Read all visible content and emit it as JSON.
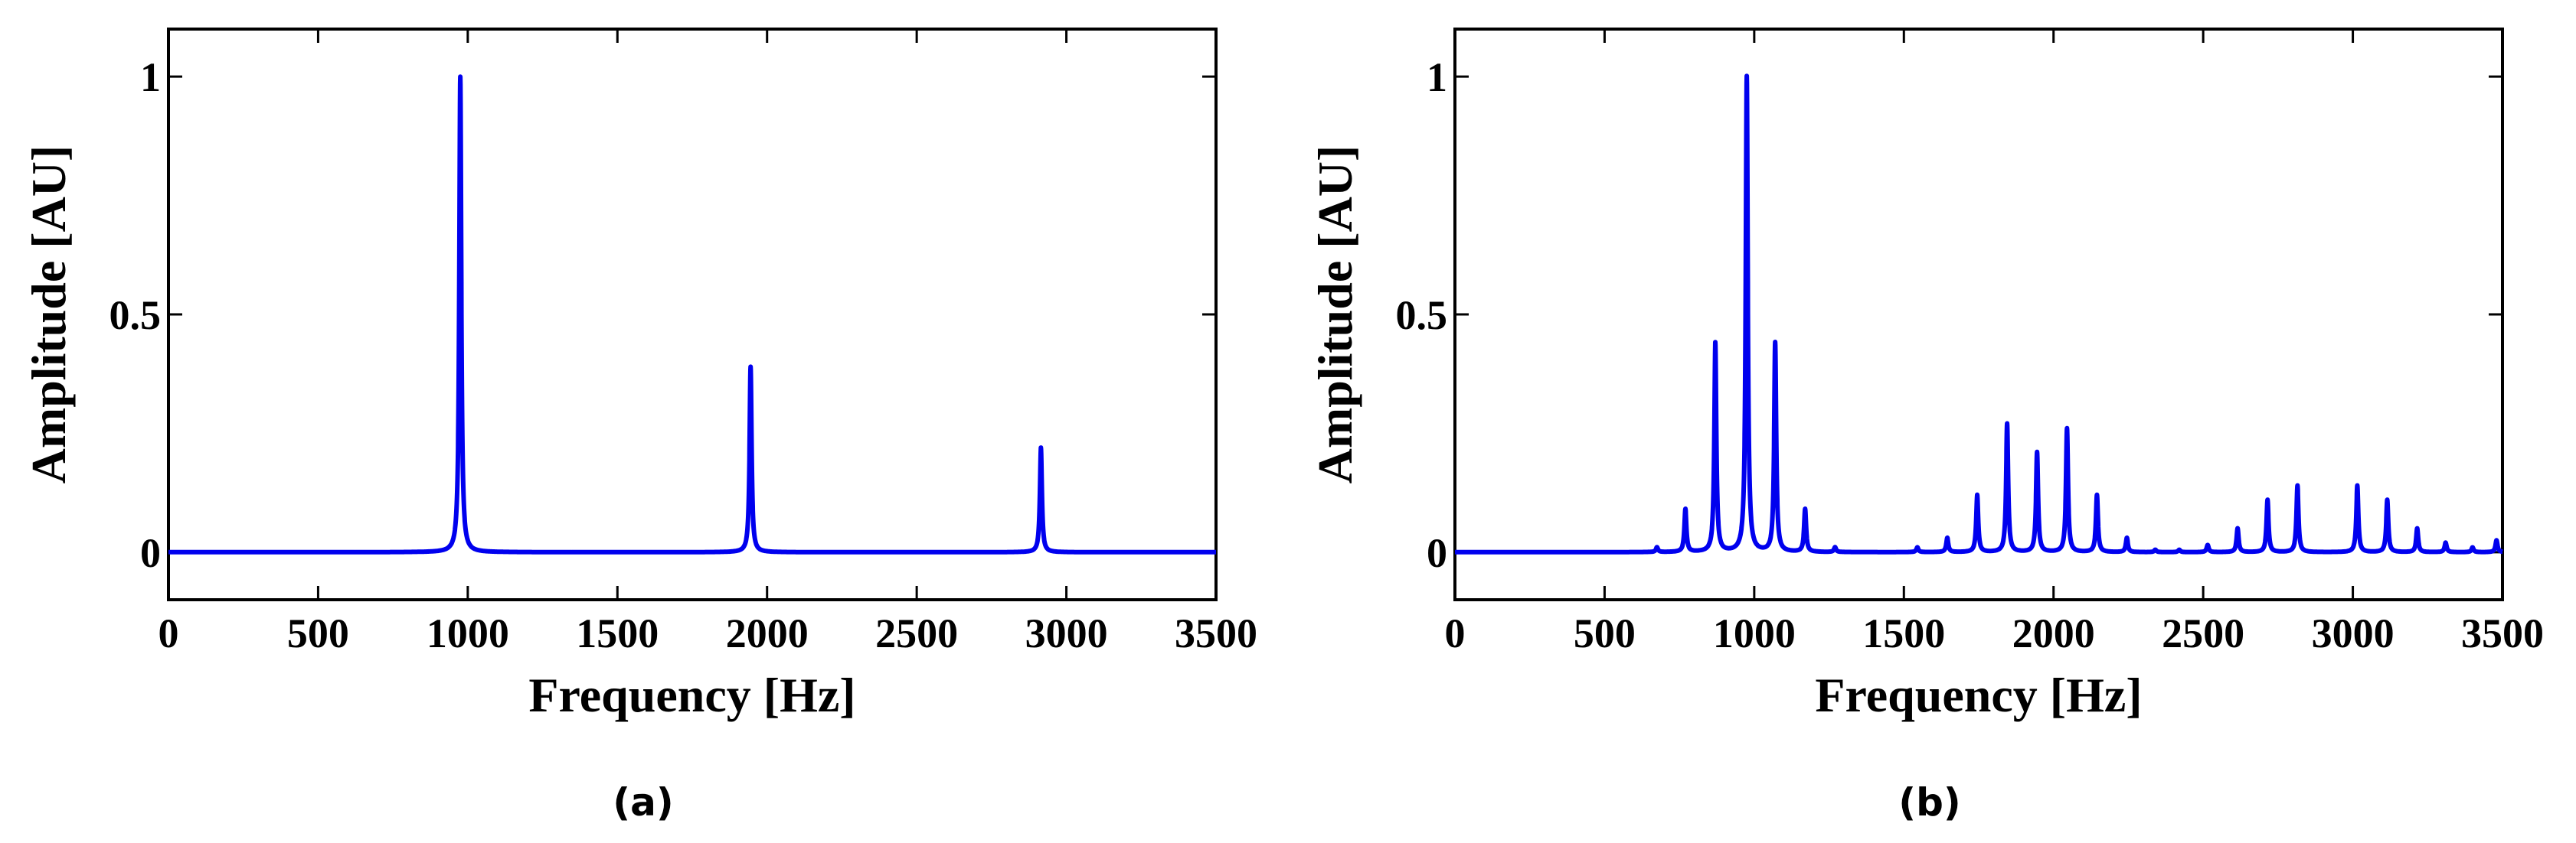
{
  "chart_data": [
    {
      "type": "line",
      "caption": "(a)",
      "xlabel": "Frequency [Hz]",
      "ylabel": "Amplitude [AU]",
      "xlim": [
        0,
        3500
      ],
      "ylim": [
        -0.1,
        1.1
      ],
      "xticks": [
        "0",
        "500",
        "1000",
        "1500",
        "2000",
        "2500",
        "3000",
        "3500"
      ],
      "yticks": [
        "0",
        "0.5",
        "1"
      ],
      "grid": false,
      "color": "#0000ee",
      "peaks": [
        {
          "x": 975,
          "y": 1.0
        },
        {
          "x": 1945,
          "y": 0.39
        },
        {
          "x": 2915,
          "y": 0.22
        }
      ]
    },
    {
      "type": "line",
      "caption": "(b)",
      "xlabel": "Frequency [Hz]",
      "ylabel": "Amplitude [AU]",
      "xlim": [
        0,
        3500
      ],
      "ylim": [
        -0.1,
        1.1
      ],
      "xticks": [
        "0",
        "500",
        "1000",
        "1500",
        "2000",
        "2500",
        "3000",
        "3500"
      ],
      "yticks": [
        "0",
        "0.5",
        "1"
      ],
      "grid": false,
      "color": "#0000ee",
      "peaks": [
        {
          "x": 675,
          "y": 0.01
        },
        {
          "x": 770,
          "y": 0.09
        },
        {
          "x": 870,
          "y": 0.44
        },
        {
          "x": 975,
          "y": 1.0
        },
        {
          "x": 1070,
          "y": 0.44
        },
        {
          "x": 1170,
          "y": 0.09
        },
        {
          "x": 1270,
          "y": 0.01
        },
        {
          "x": 1545,
          "y": 0.01
        },
        {
          "x": 1645,
          "y": 0.03
        },
        {
          "x": 1745,
          "y": 0.12
        },
        {
          "x": 1845,
          "y": 0.27
        },
        {
          "x": 1945,
          "y": 0.21
        },
        {
          "x": 2045,
          "y": 0.26
        },
        {
          "x": 2145,
          "y": 0.12
        },
        {
          "x": 2245,
          "y": 0.03
        },
        {
          "x": 2340,
          "y": 0.005
        },
        {
          "x": 2420,
          "y": 0.005
        },
        {
          "x": 2515,
          "y": 0.015
        },
        {
          "x": 2615,
          "y": 0.05
        },
        {
          "x": 2715,
          "y": 0.11
        },
        {
          "x": 2815,
          "y": 0.14
        },
        {
          "x": 3015,
          "y": 0.14
        },
        {
          "x": 3115,
          "y": 0.11
        },
        {
          "x": 3215,
          "y": 0.05
        },
        {
          "x": 3310,
          "y": 0.02
        },
        {
          "x": 3400,
          "y": 0.01
        },
        {
          "x": 3480,
          "y": 0.025
        }
      ]
    }
  ]
}
